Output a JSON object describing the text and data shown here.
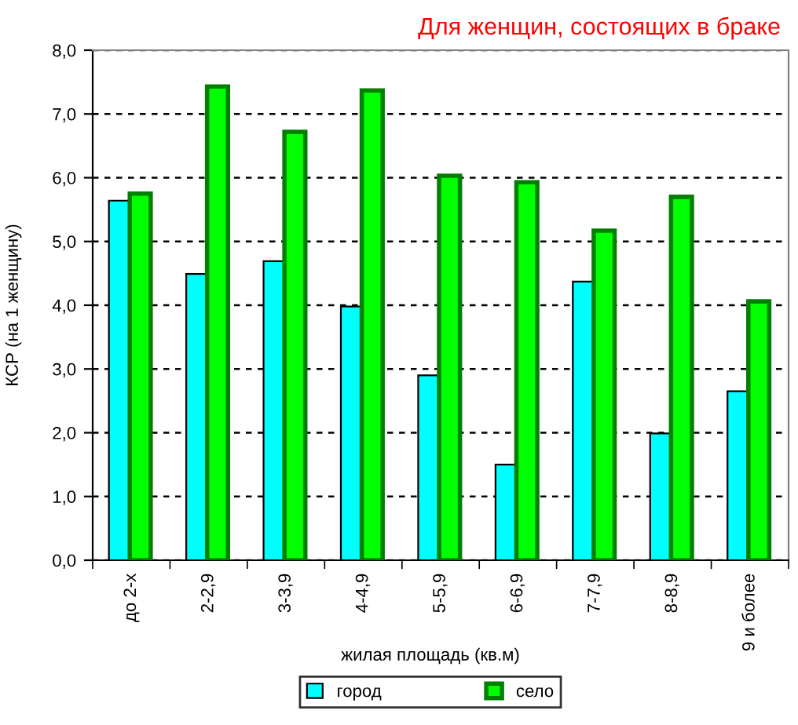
{
  "chart_data": {
    "type": "bar",
    "title": "Для женщин, состоящих в браке",
    "xlabel": "жилая площадь (кв.м)",
    "ylabel": "КСР (на 1 женщину)",
    "categories": [
      "до 2-х",
      "2-2,9",
      "3-3,9",
      "4-4,9",
      "5-5,9",
      "6-6,9",
      "7-7,9",
      "8-8,9",
      "9 и более"
    ],
    "series": [
      {
        "name": "город",
        "color": "#00ffff",
        "values": [
          5.64,
          4.49,
          4.69,
          3.98,
          2.9,
          1.5,
          4.37,
          1.99,
          2.65
        ]
      },
      {
        "name": "село",
        "color": "#00ff00",
        "values": [
          5.75,
          7.43,
          6.72,
          7.37,
          6.03,
          5.93,
          5.17,
          5.7,
          4.06
        ]
      }
    ],
    "ylim": [
      0,
      8
    ],
    "yticks": [
      {
        "value": 0,
        "label": "0,0"
      },
      {
        "value": 1,
        "label": "1,0"
      },
      {
        "value": 2,
        "label": "2,0"
      },
      {
        "value": 3,
        "label": "3,0"
      },
      {
        "value": 4,
        "label": "4,0"
      },
      {
        "value": 5,
        "label": "5,0"
      },
      {
        "value": 6,
        "label": "6,0"
      },
      {
        "value": 7,
        "label": "7,0"
      },
      {
        "value": 8,
        "label": "8,0"
      }
    ],
    "grid": "y",
    "legend": "bottom"
  }
}
